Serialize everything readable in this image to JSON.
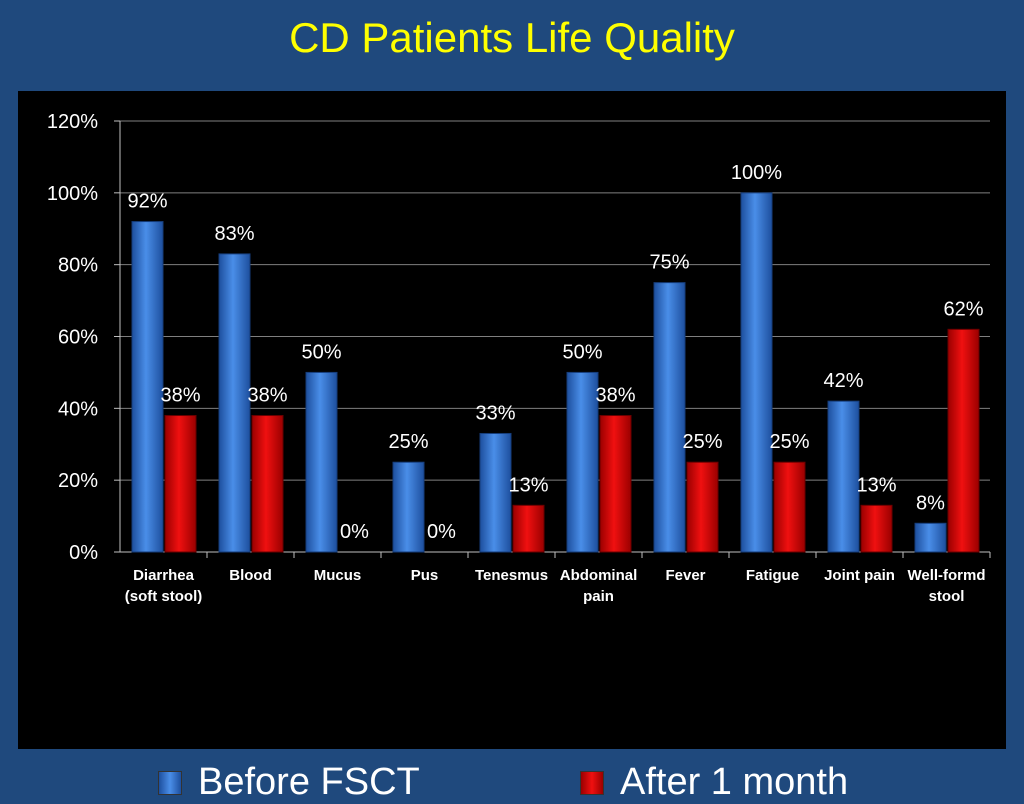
{
  "slide": {
    "title": "CD Patients Life Quality"
  },
  "colors": {
    "background": "#1f497d",
    "title": "#ffff00",
    "panel": "#000000",
    "before": "#2f6fcf",
    "after": "#d40000"
  },
  "chart_data": {
    "type": "bar",
    "title": "",
    "xlabel": "",
    "ylabel": "",
    "ylim": [
      0,
      120
    ],
    "yticks": [
      "0%",
      "20%",
      "40%",
      "60%",
      "80%",
      "100%",
      "120%"
    ],
    "grid": true,
    "legend_position": "bottom",
    "categories": [
      [
        "Diarrhea",
        "(soft stool)"
      ],
      [
        "Blood"
      ],
      [
        "Mucus"
      ],
      [
        "Pus"
      ],
      [
        "Tenesmus"
      ],
      [
        "Abdominal",
        "pain"
      ],
      [
        "Fever"
      ],
      [
        "Fatigue"
      ],
      [
        "Joint pain"
      ],
      [
        "Well-formd",
        "stool"
      ]
    ],
    "series": [
      {
        "name": "Before FSCT",
        "values": [
          92,
          83,
          50,
          25,
          33,
          50,
          75,
          100,
          42,
          8
        ],
        "labels": [
          "92%",
          "83%",
          "50%",
          "25%",
          "33%",
          "50%",
          "75%",
          "100%",
          "42%",
          "8%"
        ]
      },
      {
        "name": "After 1 month",
        "values": [
          38,
          38,
          0,
          0,
          13,
          38,
          25,
          25,
          13,
          62
        ],
        "labels": [
          "38%",
          "38%",
          "0%",
          "0%",
          "13%",
          "38%",
          "25%",
          "25%",
          "13%",
          "62%"
        ]
      }
    ]
  }
}
